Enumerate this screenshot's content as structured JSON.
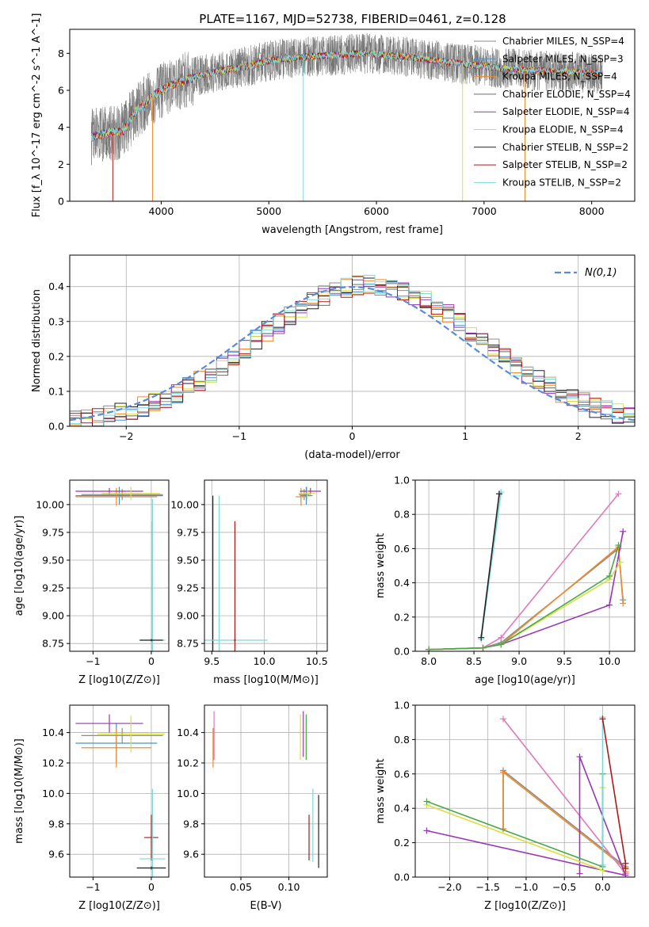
{
  "figure_title": "PLATE=1167, MJD=52738, FIBERID=0461, z=0.128",
  "colors": {
    "Chabrier MILES": "#8c8c8c",
    "Salpeter MILES": "#4a90c8",
    "Kroupa MILES": "#ee8a2a",
    "Chabrier ELODIE": "#6b6b6b",
    "Salpeter ELODIE": "#9a35b5",
    "Kroupa ELODIE": "#d8e040",
    "Chabrier STELIB": "#222222",
    "Salpeter STELIB": "#b01818",
    "Kroupa STELIB": "#7dd8d8",
    "gauss": "#5b8bd8",
    "aux_green": "#4aa84a",
    "aux_pink": "#e07ab8",
    "aux_lime": "#a8e050"
  },
  "chart_data": [
    {
      "id": "spectrum",
      "type": "line",
      "xlabel": "wavelength [Angstrom, rest frame]",
      "ylabel": "Flux [f_λ 10^-17 erg cm^-2 s^-1 A^-1]",
      "xlim": [
        3150,
        8400
      ],
      "ylim": [
        0,
        9.3
      ],
      "xticks": [
        "4000",
        "5000",
        "6000",
        "7000",
        "8000"
      ],
      "yticks": [
        "0",
        "2",
        "4",
        "6",
        "8"
      ],
      "grid": false,
      "legend_position": "top-right",
      "continuum": [
        [
          3350,
          3.45
        ],
        [
          3500,
          3.7
        ],
        [
          3650,
          3.8
        ],
        [
          3750,
          4.8
        ],
        [
          3950,
          5.8
        ],
        [
          4100,
          6.3
        ],
        [
          4300,
          6.7
        ],
        [
          4500,
          7.0
        ],
        [
          4800,
          7.3
        ],
        [
          5000,
          7.6
        ],
        [
          5300,
          7.8
        ],
        [
          5600,
          7.9
        ],
        [
          5900,
          8.0
        ],
        [
          6300,
          7.8
        ],
        [
          6700,
          7.5
        ],
        [
          7000,
          7.3
        ],
        [
          7400,
          7.1
        ],
        [
          7800,
          7.0
        ],
        [
          8100,
          6.9
        ]
      ],
      "series": [
        {
          "name": "Chabrier MILES, N_SSP=4"
        },
        {
          "name": "Salpeter MILES, N_SSP=3"
        },
        {
          "name": "Kroupa MILES, N_SSP=4"
        },
        {
          "name": "Chabrier ELODIE, N_SSP=4"
        },
        {
          "name": "Salpeter ELODIE, N_SSP=4"
        },
        {
          "name": "Kroupa ELODIE, N_SSP=4"
        },
        {
          "name": "Chabrier STELIB, N_SSP=2"
        },
        {
          "name": "Salpeter STELIB, N_SSP=2"
        },
        {
          "name": "Kroupa STELIB, N_SSP=2"
        }
      ]
    },
    {
      "id": "residuals",
      "type": "line",
      "xlabel": "(data-model)/error",
      "ylabel": "Normed distribution",
      "xlim": [
        -2.5,
        2.5
      ],
      "ylim": [
        0,
        0.49
      ],
      "xticks": [
        "−2",
        "−1",
        "0",
        "1",
        "2"
      ],
      "yticks": [
        "0.0",
        "0.1",
        "0.2",
        "0.3",
        "0.4"
      ],
      "grid": true,
      "legend": "N(0,1)",
      "legend_position": "top-right",
      "bin_width": 0.1
    },
    {
      "id": "age_vs_Z",
      "type": "scatter",
      "xlabel": "Z [log10(Z/Z⊙)]",
      "ylabel": "age [log10(age/yr)]",
      "xlim": [
        -1.4,
        0.3
      ],
      "ylim": [
        8.68,
        10.22
      ],
      "xticks": [
        "−1",
        "0"
      ],
      "yticks": [
        "8.75",
        "9.00",
        "9.25",
        "9.50",
        "9.75",
        "10.00"
      ],
      "grid": true,
      "points": [
        {
          "series": "Chabrier MILES",
          "x": -0.5,
          "xerr": 0.7,
          "y": 10.09,
          "yerr": 0.05
        },
        {
          "series": "Salpeter MILES",
          "x": -0.55,
          "xerr": 0.75,
          "y": 10.08,
          "yerr": 0.08
        },
        {
          "series": "Kroupa MILES",
          "x": -0.6,
          "xerr": 0.7,
          "y": 10.07,
          "yerr": 0.08
        },
        {
          "series": "Salpeter ELODIE",
          "x": -0.72,
          "xerr": 0.58,
          "y": 10.12,
          "yerr": 0.03
        },
        {
          "series": "Kroupa ELODIE",
          "x": -0.35,
          "xerr": 0.5,
          "y": 10.1,
          "yerr": 0.06
        },
        {
          "series": "Salpeter STELIB",
          "x": 0.02,
          "xerr": 0.02,
          "y": 8.78,
          "yerr": 1.07
        },
        {
          "series": "Kroupa STELIB",
          "x": 0.02,
          "xerr": 0.22,
          "y": 8.78,
          "yerr": 1.27
        },
        {
          "series": "Chabrier STELIB",
          "x": 0.0,
          "xerr": 0.2,
          "y": 8.78,
          "yerr": 0.01
        }
      ]
    },
    {
      "id": "age_vs_mass",
      "type": "scatter",
      "xlabel": "mass [log10(M/M⊙)]",
      "xlim": [
        9.43,
        10.6
      ],
      "ylim": [
        8.68,
        10.22
      ],
      "xticks": [
        "9.5",
        "10.0",
        "10.5"
      ],
      "yticks": [
        "8.75",
        "9.00",
        "9.25",
        "9.50",
        "9.75",
        "10.00"
      ],
      "grid": true,
      "points": [
        {
          "series": "Chabrier MILES",
          "x": 10.38,
          "xerr": 0.05,
          "y": 10.09,
          "yerr": 0.05
        },
        {
          "series": "Salpeter MILES",
          "x": 10.4,
          "xerr": 0.06,
          "y": 10.08,
          "yerr": 0.08
        },
        {
          "series": "Kroupa MILES",
          "x": 10.35,
          "xerr": 0.05,
          "y": 10.07,
          "yerr": 0.08
        },
        {
          "series": "Salpeter ELODIE",
          "x": 10.44,
          "xerr": 0.1,
          "y": 10.12,
          "yerr": 0.03
        },
        {
          "series": "Kroupa ELODIE",
          "x": 10.41,
          "xerr": 0.08,
          "y": 10.1,
          "yerr": 0.06
        },
        {
          "series": "Chabrier STELIB",
          "x": 9.51,
          "xerr": 0.01,
          "y": 8.78,
          "yerr": 1.3
        },
        {
          "series": "Kroupa STELIB",
          "x": 9.57,
          "xerr": 0.46,
          "y": 8.78,
          "yerr": 1.3
        },
        {
          "series": "Salpeter STELIB",
          "x": 9.72,
          "xerr": 0.01,
          "y": 8.78,
          "yerr": 1.07
        }
      ]
    },
    {
      "id": "weight_vs_age",
      "type": "line",
      "xlabel": "age [log10(age/yr)]",
      "ylabel": "mass weight",
      "xlim": [
        7.85,
        10.28
      ],
      "ylim": [
        0,
        1.0
      ],
      "xticks": [
        "8.0",
        "8.5",
        "9.0",
        "9.5",
        "10.0"
      ],
      "yticks": [
        "0.0",
        "0.2",
        "0.4",
        "0.6",
        "0.8",
        "1.0"
      ],
      "grid": true,
      "series": [
        {
          "series": "Chabrier MILES",
          "x": [
            8.0,
            8.6,
            8.8,
            10.1,
            10.15
          ],
          "y": [
            0.01,
            0.02,
            0.05,
            0.6,
            0.3
          ]
        },
        {
          "series": "Kroupa MILES",
          "x": [
            8.0,
            8.6,
            8.8,
            10.1,
            10.15
          ],
          "y": [
            0.01,
            0.02,
            0.04,
            0.61,
            0.28
          ]
        },
        {
          "series": "aux_pink",
          "x": [
            8.0,
            8.6,
            8.8,
            10.1
          ],
          "y": [
            0.01,
            0.02,
            0.08,
            0.92
          ]
        },
        {
          "series": "Salpeter ELODIE",
          "x": [
            8.0,
            8.6,
            8.8,
            10.0,
            10.15
          ],
          "y": [
            0.01,
            0.02,
            0.04,
            0.27,
            0.7
          ]
        },
        {
          "series": "Kroupa ELODIE",
          "x": [
            8.0,
            8.6,
            8.8,
            10.0,
            10.12
          ],
          "y": [
            0.01,
            0.02,
            0.04,
            0.42,
            0.52
          ]
        },
        {
          "series": "aux_green",
          "x": [
            8.0,
            8.6,
            8.8,
            10.0,
            10.1
          ],
          "y": [
            0.01,
            0.02,
            0.04,
            0.44,
            0.62
          ]
        },
        {
          "series": "Kroupa STELIB",
          "x": [
            8.58,
            8.8
          ],
          "y": [
            0.07,
            0.93
          ]
        },
        {
          "series": "Chabrier STELIB",
          "x": [
            8.58,
            8.78
          ],
          "y": [
            0.08,
            0.92
          ]
        }
      ]
    },
    {
      "id": "mass_vs_Z",
      "type": "scatter",
      "xlabel": "Z [log10(Z/Z⊙)]",
      "ylabel": "mass [log10(M/M⊙)]",
      "xlim": [
        -1.4,
        0.3
      ],
      "ylim": [
        9.45,
        10.58
      ],
      "xticks": [
        "−1",
        "0"
      ],
      "yticks": [
        "9.6",
        "9.8",
        "10.0",
        "10.2",
        "10.4"
      ],
      "grid": true,
      "points": [
        {
          "series": "Chabrier MILES",
          "x": -0.5,
          "xerr": 0.7,
          "y": 10.38,
          "yerr": 0.05
        },
        {
          "series": "Salpeter MILES",
          "x": -0.6,
          "xerr": 0.7,
          "y": 10.33,
          "yerr": 0.13
        },
        {
          "series": "Kroupa MILES",
          "x": -0.6,
          "xerr": 0.6,
          "y": 10.3,
          "yerr": 0.13
        },
        {
          "series": "Salpeter ELODIE",
          "x": -0.72,
          "xerr": 0.58,
          "y": 10.46,
          "yerr": 0.06
        },
        {
          "series": "Kroupa ELODIE",
          "x": -0.35,
          "xerr": 0.58,
          "y": 10.39,
          "yerr": 0.12
        },
        {
          "series": "Salpeter STELIB",
          "x": 0.0,
          "xerr": 0.12,
          "y": 9.71,
          "yerr": 0.15
        },
        {
          "series": "Kroupa STELIB",
          "x": 0.02,
          "xerr": 0.22,
          "y": 9.57,
          "yerr": 0.46
        },
        {
          "series": "Chabrier STELIB",
          "x": 0.0,
          "xerr": 0.25,
          "y": 9.51,
          "yerr": 0.01
        }
      ]
    },
    {
      "id": "mass_vs_ebv",
      "type": "scatter",
      "xlabel": "E(B-V)",
      "xlim": [
        0.012,
        0.14
      ],
      "ylim": [
        9.45,
        10.58
      ],
      "xticks": [
        "0.05",
        "0.10"
      ],
      "yticks": [
        "9.6",
        "9.8",
        "10.0",
        "10.2",
        "10.4"
      ],
      "grid": true,
      "points": [
        {
          "series": "Kroupa MILES",
          "x": 0.021,
          "y": 10.3,
          "yerr": 0.13
        },
        {
          "series": "aux_pink",
          "x": 0.022,
          "y": 10.38,
          "yerr": 0.16
        },
        {
          "series": "Salpeter ELODIE",
          "x": 0.115,
          "y": 10.39,
          "yerr": 0.15
        },
        {
          "series": "Kroupa ELODIE",
          "x": 0.112,
          "y": 10.37,
          "yerr": 0.15
        },
        {
          "series": "aux_green",
          "x": 0.118,
          "y": 10.37,
          "yerr": 0.15
        },
        {
          "series": "Salpeter STELIB",
          "x": 0.121,
          "y": 9.71,
          "yerr": 0.15
        },
        {
          "series": "Kroupa STELIB",
          "x": 0.125,
          "y": 9.79,
          "yerr": 0.24
        },
        {
          "series": "Chabrier STELIB",
          "x": 0.131,
          "y": 9.75,
          "yerr": 0.24
        }
      ]
    },
    {
      "id": "weight_vs_Z",
      "type": "line",
      "xlabel": "Z [log10(Z/Z⊙)]",
      "ylabel": "mass weight",
      "xlim": [
        -2.45,
        0.42
      ],
      "ylim": [
        0,
        1.0
      ],
      "xticks": [
        "−2.0",
        "−1.5",
        "−1.0",
        "−0.5",
        "0.0"
      ],
      "yticks": [
        "0.0",
        "0.2",
        "0.4",
        "0.6",
        "0.8",
        "1.0"
      ],
      "grid": true,
      "series": [
        {
          "series": "Chabrier MILES",
          "x": [
            -1.3,
            -1.3,
            0.3
          ],
          "y": [
            0.28,
            0.62,
            0.06
          ]
        },
        {
          "series": "Kroupa MILES",
          "x": [
            -1.3,
            -1.3,
            0.3,
            0.3
          ],
          "y": [
            0.28,
            0.61,
            0.05,
            0.03
          ]
        },
        {
          "series": "aux_pink",
          "x": [
            -1.3,
            0.3
          ],
          "y": [
            0.92,
            0.02
          ]
        },
        {
          "series": "Salpeter ELODIE",
          "x": [
            -2.3,
            0.3,
            -0.3,
            -0.3
          ],
          "y": [
            0.27,
            0.01,
            0.7,
            0.02
          ]
        },
        {
          "series": "Kroupa ELODIE",
          "x": [
            -2.3,
            0.0,
            0.0
          ],
          "y": [
            0.42,
            0.04,
            0.52
          ]
        },
        {
          "series": "aux_green",
          "x": [
            -2.3,
            0.0,
            0.0
          ],
          "y": [
            0.44,
            0.06,
            0.6
          ]
        },
        {
          "series": "Kroupa STELIB",
          "x": [
            0.0,
            0.0
          ],
          "y": [
            0.07,
            0.93
          ]
        },
        {
          "series": "Salpeter STELIB",
          "x": [
            0.0,
            0.3,
            0.3
          ],
          "y": [
            0.92,
            0.08,
            0.05
          ]
        }
      ]
    }
  ]
}
